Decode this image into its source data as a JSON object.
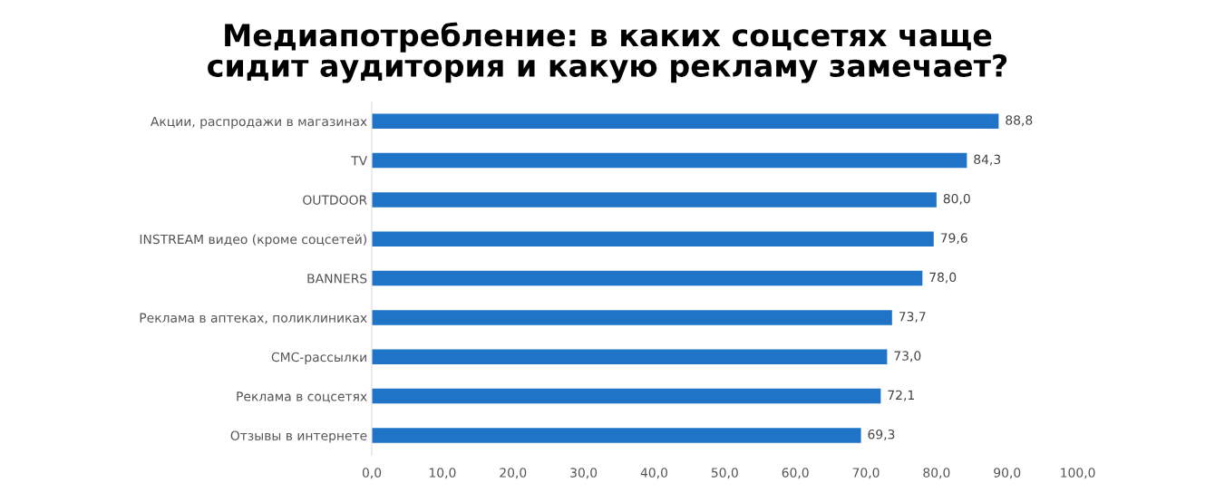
{
  "chart_data": {
    "type": "bar",
    "orientation": "horizontal",
    "title": "Медиапотребление: в каких соцсетях чаще\nсидит аудитория и какую рекламу замечает?",
    "categories": [
      "Акции, распродажи в магазинах",
      "TV",
      "OUTDOOR",
      "INSTREAM видео (кроме соцсетей)",
      "BANNERS",
      "Реклама в аптеках, поликлиниках",
      "СМС-рассылки",
      "Реклама в соцсетях",
      "Отзывы в интернете"
    ],
    "values": [
      88.8,
      84.3,
      80.0,
      79.6,
      78.0,
      73.7,
      73.0,
      72.1,
      69.3
    ],
    "value_labels": [
      "88,8",
      "84,3",
      "80,0",
      "79,6",
      "78,0",
      "73,7",
      "73,0",
      "72,1",
      "69,3"
    ],
    "color": "#1f74c8",
    "xlim": [
      0,
      100
    ],
    "xticks": [
      {
        "value": 0,
        "label": "0,0"
      },
      {
        "value": 10,
        "label": "10,0"
      },
      {
        "value": 20,
        "label": "20,0"
      },
      {
        "value": 30,
        "label": "30,0"
      },
      {
        "value": 40,
        "label": "40,0"
      },
      {
        "value": 50,
        "label": "50,0"
      },
      {
        "value": 60,
        "label": "60,0"
      },
      {
        "value": 70,
        "label": "70,0"
      },
      {
        "value": 80,
        "label": "80,0"
      },
      {
        "value": 90,
        "label": "90,0"
      },
      {
        "value": 100,
        "label": "100,0"
      }
    ],
    "grid": false,
    "legend": false
  }
}
